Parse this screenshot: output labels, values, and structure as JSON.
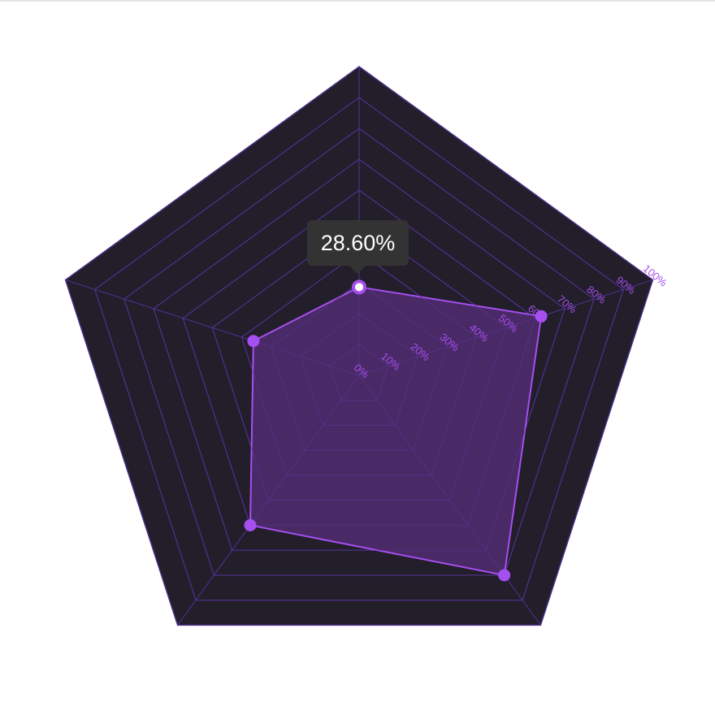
{
  "chart_data": {
    "type": "radar",
    "axes": 5,
    "radial_ticks": [
      "0%",
      "10%",
      "20%",
      "30%",
      "40%",
      "50%",
      "60%",
      "70%",
      "80%",
      "90%",
      "100%"
    ],
    "range": [
      0,
      100
    ],
    "series": [
      {
        "values": [
          28.6,
          62.0,
          80.0,
          60.0,
          36.0
        ]
      }
    ],
    "tooltip": {
      "point_index": 0,
      "text": "28.60%"
    },
    "colors": {
      "background": "#221e2a",
      "grid": "#4a2f86",
      "fill": "#4d2a6b",
      "stroke": "#a64ff0",
      "point": "#a64ff0",
      "tick_label": "#a64ff0"
    }
  }
}
